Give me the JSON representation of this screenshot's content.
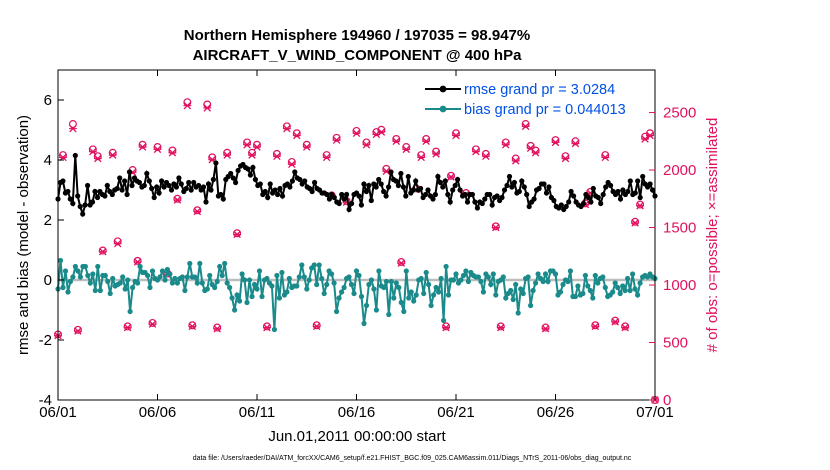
{
  "chart_data": {
    "type": "line",
    "title": "Northern Hemisphere 194960 / 197035 = 98.947%",
    "subtitle": "AIRCRAFT_V_WIND_COMPONENT @ 400 hPa",
    "xlabel": "Jun.01,2011 00:00:00 start",
    "ylabel": "rmse and bias (model - observation)",
    "y2label": "# of obs: o=possible; ×=assimilated",
    "footnote": "data file: /Users/raeder/DAI/ATM_forcXX/CAM6_setup/f.e21.FHIST_BGC.f09_025.CAM6assim.011/Diags_NTrS_2011-06/obs_diag_output.nc",
    "xlim": [
      0,
      30
    ],
    "ylim": [
      -4,
      7
    ],
    "y2lim": [
      0,
      2870
    ],
    "x_ticks": [
      0,
      5,
      10,
      15,
      20,
      25,
      30
    ],
    "x_tick_labels": [
      "06/01",
      "06/06",
      "06/11",
      "06/16",
      "06/21",
      "06/26",
      "07/01"
    ],
    "y_ticks": [
      -4,
      -2,
      0,
      2,
      4,
      6
    ],
    "y_tick_labels": [
      "-4",
      "-2",
      "0",
      "2",
      "4",
      "6"
    ],
    "y2_ticks": [
      0,
      500,
      1000,
      1500,
      2000,
      2500
    ],
    "y2_tick_labels": [
      "0",
      "500",
      "1000",
      "1500",
      "2000",
      "2500"
    ],
    "legend_position": "top-right",
    "series": [
      {
        "name": "rmse grand pr = 3.0284",
        "color": "#000000",
        "marker": "filled-circle",
        "axis": "left",
        "values": [
          2.7,
          3.25,
          3.3,
          2.9,
          2.95,
          2.7,
          2.55,
          4.15,
          2.8,
          2.45,
          2.2,
          2.5,
          3.15,
          2.5,
          2.6,
          2.95,
          2.75,
          2.95,
          2.85,
          2.8,
          3.15,
          2.95,
          2.85,
          3.0,
          3.05,
          3.4,
          3.0,
          3.3,
          2.85,
          3.6,
          3.15,
          3.4,
          3.3,
          3.25,
          3.1,
          3.15,
          3.55,
          3.3,
          3.05,
          2.75,
          3.1,
          2.9,
          3.3,
          3.1,
          3.25,
          3.15,
          3.0,
          3.2,
          3.1,
          3.4,
          3.2,
          2.95,
          3.05,
          3.25,
          3.0,
          3.25,
          3.1,
          3.15,
          3.0,
          3.1,
          2.6,
          3.2,
          3.0,
          3.35,
          3.9,
          2.8,
          2.85,
          2.7,
          3.35,
          3.45,
          3.55,
          3.4,
          3.25,
          3.65,
          3.8,
          3.85,
          3.75,
          3.7,
          3.5,
          3.75,
          3.35,
          3.15,
          3.2,
          2.85,
          2.95,
          2.75,
          3.2,
          2.9,
          3.0,
          2.85,
          3.05,
          2.8,
          3.15,
          3.2,
          3.1,
          3.3,
          3.6,
          3.4,
          3.35,
          3.2,
          3.3,
          3.1,
          3.05,
          2.95,
          3.25,
          3.05,
          3.0,
          2.9,
          2.9,
          2.85,
          2.7,
          2.85,
          2.75,
          2.6,
          2.55,
          2.85,
          2.7,
          2.85,
          2.35,
          2.55,
          2.85,
          2.9,
          2.8,
          2.5,
          3.2,
          2.95,
          3.15,
          2.65,
          3.2,
          3.1,
          3.35,
          3.2,
          2.95,
          2.8,
          3.1,
          3.6,
          3.35,
          3.3,
          3.15,
          3.55,
          3.1,
          2.8,
          3.45,
          2.9,
          3.0,
          3.3,
          3.0,
          3.05,
          2.75,
          2.85,
          3.0,
          2.8,
          2.7,
          2.85,
          3.45,
          3.25,
          3.1,
          3.3,
          2.85,
          2.6,
          3.0,
          3.15,
          3.35,
          3.0,
          2.8,
          2.85,
          2.6,
          2.85,
          2.85,
          2.6,
          2.4,
          2.6,
          2.55,
          2.7,
          2.85,
          2.85,
          2.5,
          2.75,
          2.8,
          2.65,
          2.75,
          3.0,
          3.15,
          3.45,
          3.1,
          3.25,
          2.9,
          2.95,
          3.3,
          3.1,
          2.85,
          2.45,
          2.6,
          2.7,
          3.0,
          3.05,
          3.2,
          3.2,
          2.9,
          3.1,
          2.75,
          2.65,
          2.45,
          2.4,
          2.5,
          2.35,
          2.45,
          2.6,
          2.95,
          2.8,
          2.6,
          2.5,
          2.45,
          2.55,
          2.85,
          2.75,
          2.6,
          3.05,
          2.8,
          2.75,
          2.55,
          2.85,
          3.1,
          3.25,
          3.15,
          2.95,
          2.85,
          2.95,
          2.7,
          3.0,
          2.85,
          2.95,
          3.3,
          2.85,
          2.9,
          3.3,
          2.75,
          3.45,
          3.2,
          3.1,
          3.2,
          3.0,
          2.8
        ]
      },
      {
        "name": "bias grand pr = 0.044013",
        "color": "#1a8a8a",
        "marker": "filled-circle",
        "axis": "left",
        "values": [
          -0.3,
          0.65,
          -0.25,
          0.3,
          -0.4,
          -0.05,
          0.1,
          0.45,
          0.3,
          0.1,
          0.45,
          0.45,
          0.15,
          -0.1,
          0.2,
          -0.35,
          0.45,
          -0.35,
          0.15,
          0.15,
          -0.05,
          -0.45,
          0.05,
          -0.2,
          -0.15,
          -0.1,
          0.1,
          -0.3,
          0.0,
          -1.05,
          -0.25,
          -0.05,
          -0.1,
          0.45,
          0.25,
          0.25,
          0.15,
          -0.25,
          0.3,
          0.05,
          0.0,
          0.1,
          0.3,
          0.0,
          0.35,
          0.2,
          -0.1,
          0.05,
          -0.1,
          0.05,
          0.1,
          -0.35,
          0.1,
          0.55,
          0.1,
          0.1,
          -0.1,
          0.55,
          -0.1,
          -0.35,
          -0.3,
          0.15,
          -0.15,
          -0.25,
          -0.05,
          0.45,
          0.15,
          0.55,
          -0.1,
          -0.25,
          -0.6,
          -1.0,
          -0.5,
          -0.7,
          0.2,
          0.0,
          -0.75,
          0.0,
          -0.55,
          -0.15,
          -0.3,
          0.3,
          -0.55,
          0.0,
          0.05,
          -0.1,
          -0.2,
          -1.65,
          0.15,
          -0.6,
          0.25,
          -0.5,
          -0.4,
          0.05,
          -0.25,
          -0.2,
          -0.2,
          0.1,
          0.5,
          0.1,
          -0.3,
          0.0,
          0.4,
          0.5,
          -0.15,
          0.5,
          0.05,
          -0.45,
          -0.15,
          0.3,
          0.2,
          -0.1,
          -1.05,
          -0.6,
          -0.4,
          -0.25,
          0.05,
          0.1,
          -0.15,
          -0.45,
          0.3,
          0.15,
          -0.55,
          -1.45,
          -0.85,
          -0.15,
          0.0,
          -0.3,
          -1.0,
          0.3,
          -0.2,
          -0.25,
          -0.05,
          -1.15,
          -0.05,
          -0.6,
          -0.1,
          -0.25,
          -0.75,
          -1.05,
          0.3,
          -0.6,
          -0.4,
          -0.7,
          -0.5,
          0.0,
          0.05,
          -0.45,
          0.25,
          -0.15,
          -0.85,
          -0.5,
          -0.25,
          -0.4,
          0.05,
          -1.35,
          0.45,
          -0.5,
          0.0,
          0.0,
          0.2,
          -0.1,
          0.0,
          0.15,
          0.3,
          -0.05,
          0.25,
          0.15,
          0.1,
          0.1,
          -0.05,
          -0.4,
          0.2,
          0.1,
          -0.15,
          0.2,
          -0.5,
          -0.05,
          0.0,
          0.1,
          -0.6,
          -0.45,
          -0.35,
          -0.65,
          -0.15,
          -1.1,
          -0.3,
          -0.45,
          0.05,
          0.1,
          -0.85,
          -0.35,
          -0.1,
          0.2,
          0.05,
          -0.05,
          0.2,
          -0.05,
          0.3,
          0.3,
          0.2,
          -0.5,
          -0.4,
          -0.15,
          0.0,
          -0.05,
          0.3,
          -0.55,
          -0.55,
          -0.2,
          -0.5,
          -0.45,
          0.15,
          -0.2,
          -0.35,
          -0.6,
          0.15,
          -0.1,
          0.05,
          0.1,
          -0.25,
          -0.55,
          -0.5,
          -0.4,
          -0.1,
          -0.25,
          -0.45,
          -0.2,
          -0.35,
          0.05,
          -0.35,
          0.2,
          -0.3,
          -0.5,
          -0.1,
          0.1,
          0.15,
          0.1,
          0.2,
          0.1,
          0.05
        ]
      }
    ],
    "obs_count_series": [
      {
        "name": "possible",
        "symbol": "o",
        "axis": "right",
        "color": "#e0115f",
        "x": [
          0,
          0.25,
          0.75,
          1.0,
          1.75,
          2.0,
          2.25,
          2.75,
          3.0,
          3.5,
          3.75,
          4.0,
          4.25,
          4.75,
          5.0,
          5.5,
          5.75,
          6.0,
          6.5,
          6.75,
          7.0,
          7.5,
          7.75,
          8.0,
          8.5,
          9.0,
          9.5,
          9.75,
          10.0,
          10.5,
          11.0,
          11.5,
          11.75,
          12.0,
          12.5,
          13.0,
          13.5,
          13.75,
          14.0,
          14.5,
          15.0,
          15.5,
          16.0,
          16.25,
          16.5,
          17.0,
          17.25,
          17.5,
          18.0,
          18.25,
          18.5,
          19.0,
          19.5,
          19.75,
          20.0,
          20.5,
          21.0,
          21.5,
          22.0,
          22.25,
          22.5,
          23.0,
          23.5,
          23.75,
          24.0,
          24.5,
          25.0,
          25.5,
          26.0,
          26.5,
          26.75,
          27.0,
          27.5,
          28.0,
          28.5,
          29.0,
          29.25,
          29.5,
          29.75,
          30.0
        ],
        "values": [
          570,
          2130,
          2400,
          610,
          2180,
          2120,
          1300,
          2150,
          1380,
          640,
          2000,
          1210,
          2220,
          670,
          2200,
          1100,
          2170,
          1750,
          2590,
          650,
          1650,
          2570,
          2110,
          630,
          2150,
          1450,
          2240,
          2150,
          2220,
          640,
          2140,
          2380,
          2070,
          2320,
          2220,
          650,
          2130,
          1780,
          2280,
          1730,
          2340,
          2240,
          2330,
          2350,
          2010,
          2270,
          1200,
          2200,
          1840,
          2130,
          2270,
          2160,
          640,
          1950,
          2320,
          1800,
          2180,
          2140,
          1510,
          640,
          2240,
          2100,
          2400,
          2210,
          2170,
          630,
          2260,
          2120,
          2250,
          1710,
          1810,
          650,
          2130,
          690,
          640,
          1550,
          1700,
          2290,
          2320,
          0
        ]
      },
      {
        "name": "assimilated",
        "symbol": "×",
        "axis": "right",
        "color": "#e0115f",
        "x": [
          0,
          0.25,
          0.75,
          1.0,
          1.75,
          2.0,
          2.25,
          2.75,
          3.0,
          3.5,
          3.75,
          4.0,
          4.25,
          4.75,
          5.0,
          5.5,
          5.75,
          6.0,
          6.5,
          6.75,
          7.0,
          7.5,
          7.75,
          8.0,
          8.5,
          9.0,
          9.5,
          9.75,
          10.0,
          10.5,
          11.0,
          11.5,
          11.75,
          12.0,
          12.5,
          13.0,
          13.5,
          13.75,
          14.0,
          14.5,
          15.0,
          15.5,
          16.0,
          16.25,
          16.5,
          17.0,
          17.25,
          17.5,
          18.0,
          18.25,
          18.5,
          19.0,
          19.5,
          19.75,
          20.0,
          20.5,
          21.0,
          21.5,
          22.0,
          22.25,
          22.5,
          23.0,
          23.5,
          23.75,
          24.0,
          24.5,
          25.0,
          25.5,
          26.0,
          26.5,
          26.75,
          27.0,
          27.5,
          28.0,
          28.5,
          29.0,
          29.25,
          29.5,
          29.75,
          30.0
        ],
        "values": [
          560,
          2110,
          2360,
          600,
          2160,
          2100,
          1290,
          2130,
          1360,
          630,
          1980,
          1200,
          2200,
          660,
          2180,
          1090,
          2150,
          1740,
          2560,
          640,
          1640,
          2540,
          2090,
          620,
          2130,
          1440,
          2220,
          2130,
          2200,
          630,
          2120,
          2360,
          2050,
          2300,
          2200,
          640,
          2110,
          1770,
          2260,
          1720,
          2320,
          2220,
          2310,
          2330,
          1990,
          2250,
          1190,
          2180,
          1830,
          2110,
          2250,
          2140,
          630,
          1940,
          2300,
          1790,
          2160,
          2120,
          1500,
          630,
          2220,
          2080,
          2380,
          2190,
          2150,
          620,
          2240,
          2100,
          2230,
          1700,
          1800,
          640,
          2110,
          680,
          630,
          1540,
          1690,
          2270,
          2300,
          0
        ]
      }
    ]
  }
}
